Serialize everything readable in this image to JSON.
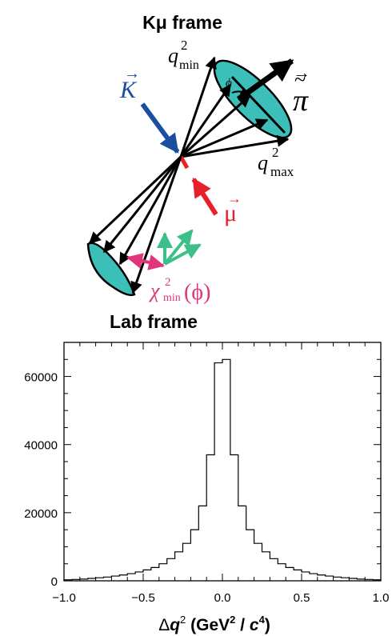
{
  "diagram": {
    "top_label": "Kμ frame",
    "bottom_label": "Lab frame",
    "labels": {
      "kaon": "K",
      "muon": "μ",
      "pion": "π",
      "q_base": "q",
      "q_sup": "2",
      "q_min_sub": "min",
      "q_max_sub": "max",
      "phi": "ϕ",
      "chi_base": "χ",
      "chi_sup": "2",
      "chi_sub": "min",
      "chi_arg": "(ϕ)",
      "vec_arrow": "→",
      "tilde": "~"
    },
    "colors": {
      "kaon": "#1a4fa0",
      "muon": "#e8202a",
      "cone": "#3cbfb8",
      "green": "#3dbf8a",
      "chi": "#e0357a"
    }
  },
  "chart_data": {
    "type": "histogram",
    "xlabel": "Δq² (GeV² / c⁴)",
    "xlabel_parts": {
      "delta": "Δ",
      "q": "q",
      "q_sup": "2",
      "units_open": "(GeV",
      "gev_sup": "2",
      "slash": " / ",
      "c": "c",
      "c_sup": "4",
      "units_close": ")"
    },
    "ylabel": "",
    "xlim": [
      -1.0,
      1.0
    ],
    "ylim": [
      0,
      70000
    ],
    "xticks": [
      -1.0,
      -0.5,
      0.0,
      0.5,
      1.0
    ],
    "xtick_labels": [
      "−1.0",
      "−0.5",
      "0.0",
      "0.5",
      "1.0"
    ],
    "yticks": [
      0,
      20000,
      40000,
      60000
    ],
    "ytick_labels": [
      "0",
      "20000",
      "40000",
      "60000"
    ],
    "bin_width": 0.05,
    "bin_centers": [
      -0.975,
      -0.925,
      -0.875,
      -0.825,
      -0.775,
      -0.725,
      -0.675,
      -0.625,
      -0.575,
      -0.525,
      -0.475,
      -0.425,
      -0.375,
      -0.325,
      -0.275,
      -0.225,
      -0.175,
      -0.125,
      -0.075,
      -0.025,
      0.025,
      0.075,
      0.125,
      0.175,
      0.225,
      0.275,
      0.325,
      0.375,
      0.425,
      0.475,
      0.525,
      0.575,
      0.625,
      0.675,
      0.725,
      0.775,
      0.825,
      0.875,
      0.925,
      0.975
    ],
    "values": [
      300,
      400,
      500,
      700,
      900,
      1100,
      1400,
      1700,
      2100,
      2600,
      3200,
      3900,
      5000,
      6500,
      8500,
      11000,
      15000,
      22000,
      37000,
      64000,
      65000,
      37000,
      22000,
      15000,
      11000,
      8500,
      6500,
      5000,
      3900,
      3200,
      2600,
      2100,
      1700,
      1400,
      1100,
      900,
      700,
      500,
      400,
      300
    ]
  }
}
